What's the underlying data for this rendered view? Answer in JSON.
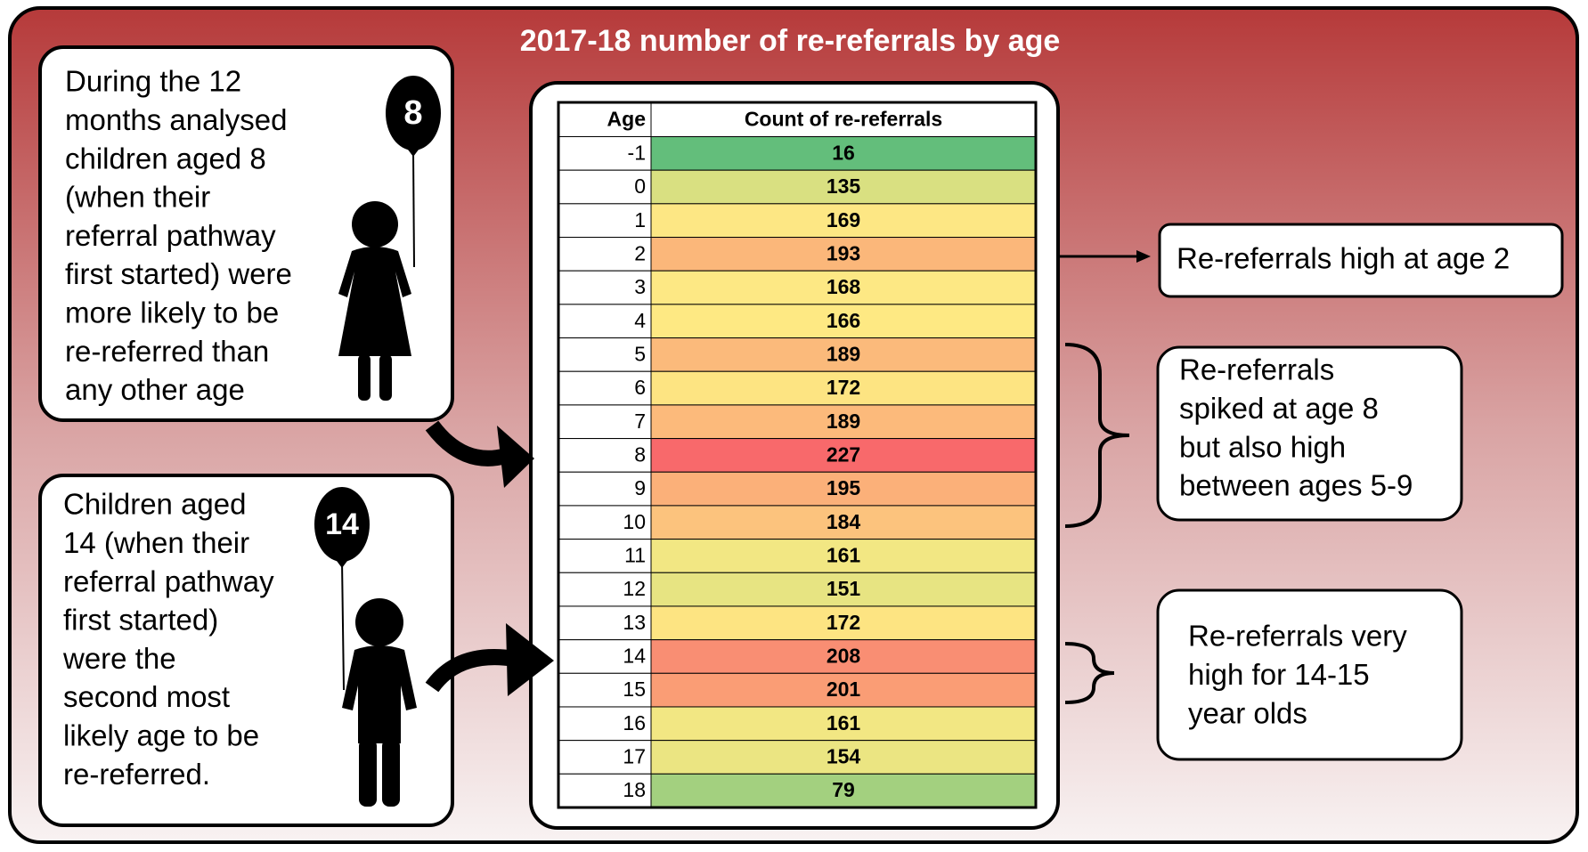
{
  "title": "2017-18 number of re-referrals by age",
  "left_notes": [
    {
      "balloon": "8",
      "lines": [
        "During the 12",
        "months analysed",
        "children aged 8",
        "(when their",
        "referral pathway",
        "first started) were",
        "more likely to be",
        "re-referred than",
        "any other age"
      ]
    },
    {
      "balloon": "14",
      "lines": [
        "Children aged",
        "14 (when their",
        "referral pathway",
        "first started)",
        "were the",
        "second most",
        "likely age to be",
        "re-referred."
      ]
    }
  ],
  "table": {
    "header": [
      "Age",
      "Count of re-referrals"
    ],
    "rows": [
      [
        -1,
        16
      ],
      [
        0,
        135
      ],
      [
        1,
        169
      ],
      [
        2,
        193
      ],
      [
        3,
        168
      ],
      [
        4,
        166
      ],
      [
        5,
        189
      ],
      [
        6,
        172
      ],
      [
        7,
        189
      ],
      [
        8,
        227
      ],
      [
        9,
        195
      ],
      [
        10,
        184
      ],
      [
        11,
        161
      ],
      [
        12,
        151
      ],
      [
        13,
        172
      ],
      [
        14,
        208
      ],
      [
        15,
        201
      ],
      [
        16,
        161
      ],
      [
        17,
        154
      ],
      [
        18,
        79
      ]
    ],
    "colors": [
      "#63be7b",
      "#d9e081",
      "#fde784",
      "#fbb77a",
      "#fde884",
      "#fee983",
      "#fbba7b",
      "#fde482",
      "#fcba7b",
      "#f8696b",
      "#fbb079",
      "#fcc37d",
      "#f2e783",
      "#e7e482",
      "#fde482",
      "#f98e73",
      "#fa9d75",
      "#f2e783",
      "#ebe582",
      "#a3d07f"
    ]
  },
  "right_notes": [
    {
      "lines": [
        "Re-referrals high at age 2"
      ]
    },
    {
      "lines": [
        "Re-referrals",
        "spiked at age 8",
        "but also high",
        "between ages 5-9"
      ]
    },
    {
      "lines": [
        "Re-referrals very",
        "high for 14-15",
        "year olds"
      ]
    }
  ]
}
